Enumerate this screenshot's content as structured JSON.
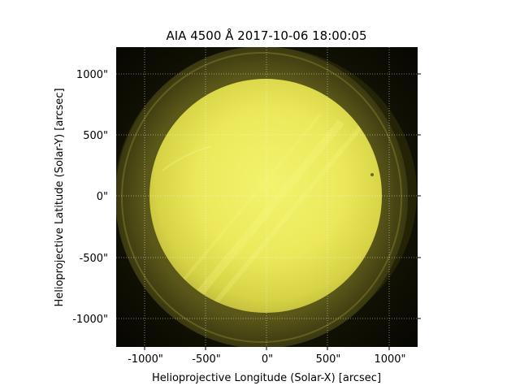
{
  "figure": {
    "title": "AIA 4500 Å 2017-10-06 18:00:05",
    "xlabel": "Helioprojective Longitude (Solar-X) [arcsec]",
    "ylabel": "Helioprojective Latitude (Solar-Y) [arcsec]",
    "x_ticks": [
      "-1000\"",
      "-500\"",
      "0\"",
      "500\"",
      "1000\""
    ],
    "y_ticks": [
      "1000\"",
      "500\"",
      "0\"",
      "-500\"",
      "-1000\""
    ]
  },
  "image": {
    "type": "solar disk image",
    "colormap": "yellow on black",
    "background_color": "#0b0a02",
    "disk_color_center": "#f2f266",
    "disk_color_edge": "#c9c635",
    "halo_color": "#5e5a1c",
    "grid": "dotted white"
  }
}
